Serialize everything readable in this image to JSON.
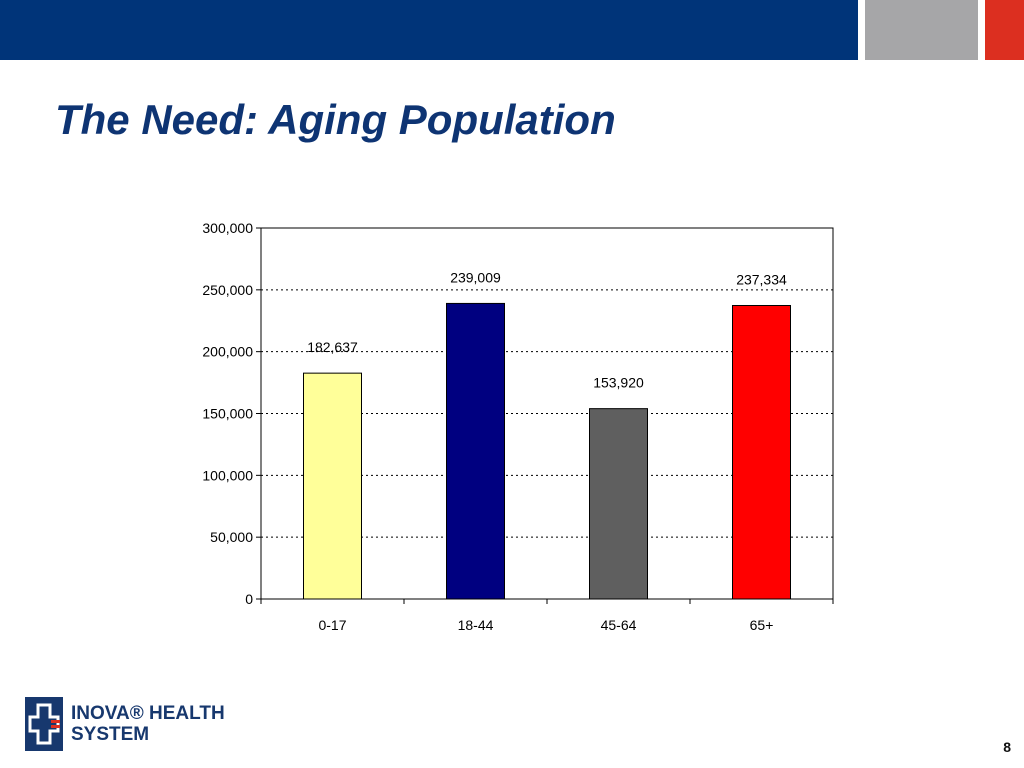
{
  "slide": {
    "title": "The Need:  Aging Population",
    "page_number": "8"
  },
  "colors": {
    "header_blue": "#003479",
    "header_gray": "#a6a6a8",
    "header_red": "#dc2f20",
    "title_blue": "#0e3473"
  },
  "logo": {
    "line1": "INOVA® HEALTH",
    "line2": "SYSTEM"
  },
  "chart_data": {
    "type": "bar",
    "title": "",
    "xlabel": "",
    "ylabel": "",
    "categories": [
      "0-17",
      "18-44",
      "45-64",
      "65+"
    ],
    "values": [
      182637,
      239009,
      153920,
      237334
    ],
    "data_labels": [
      "182,637",
      "239,009",
      "153,920",
      "237,334"
    ],
    "bar_colors": [
      "#ffff99",
      "#000080",
      "#5f5f5f",
      "#ff0000"
    ],
    "ylim": [
      0,
      300000
    ],
    "yticks": [
      0,
      50000,
      100000,
      150000,
      200000,
      250000,
      300000
    ],
    "ytick_labels": [
      "0",
      "50,000",
      "100,000",
      "150,000",
      "200,000",
      "250,000",
      "300,000"
    ],
    "grid": true,
    "legend": "none"
  }
}
